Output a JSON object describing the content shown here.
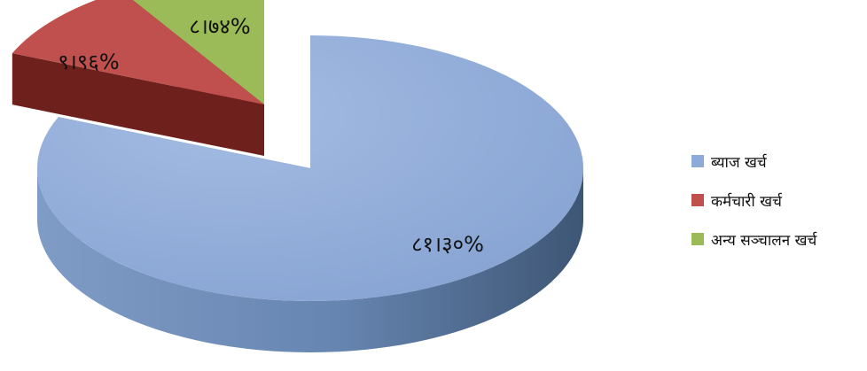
{
  "chart_data": {
    "type": "pie",
    "title": "",
    "slices": [
      {
        "name": "ब्याज खर्च",
        "value": 81.3,
        "label": "८१।३०%",
        "color": "#8eaad8",
        "side_color": "#5f7fa9"
      },
      {
        "name": "कर्मचारी खर्च",
        "value": 9.96,
        "label": "९।९६%",
        "color": "#c0504d",
        "side_color": "#6e201d"
      },
      {
        "name": "अन्य सञ्चालन खर्च",
        "value": 8.74,
        "label": "८।७४%",
        "color": "#9bbb59",
        "side_color": "#4a6624"
      }
    ],
    "legend_position": "right",
    "style": "3d-exploded"
  }
}
